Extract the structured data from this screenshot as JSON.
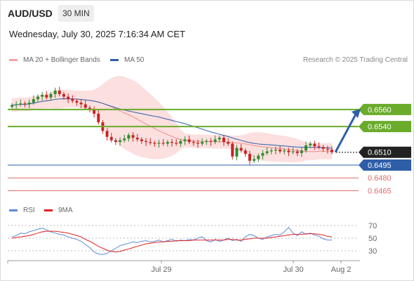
{
  "header": {
    "symbol": "AUD/USD",
    "timeframe": "30 MIN",
    "datetime": "Wednesday, July 30, 2025 7:16:34 AM CET",
    "credit": "Research © 2025 Trading Central"
  },
  "legend": {
    "ma20": {
      "label": "MA 20 + Bollinger Bands",
      "color": "#f4a3a3"
    },
    "ma50": {
      "label": "MA 50",
      "color": "#2e5ea8"
    }
  },
  "rsi_legend": {
    "rsi": {
      "label": "RSI",
      "color": "#5b8bd9"
    },
    "ma9": {
      "label": "9MA",
      "color": "#e02020"
    }
  },
  "colors": {
    "up": "#2e8b2e",
    "down": "#cc2222",
    "level_green": "#6aab2a",
    "support_blue": "#2e5ea8",
    "level_red": "#e06b6b",
    "current": "#222222",
    "band": "#fbd9d9",
    "arrow": "#2e5ea8"
  },
  "chart_data": [
    {
      "type": "candlestick",
      "title": "AUD/USD 30 MIN",
      "ylim": [
        0.6458,
        0.6596
      ],
      "x_ticks": [
        "Jul 29",
        "Jul 30",
        "Aug 2"
      ],
      "levels": [
        {
          "value": 0.656,
          "label": "0.6560",
          "kind": "resistance"
        },
        {
          "value": 0.654,
          "label": "0.6540",
          "kind": "resistance"
        },
        {
          "value": 0.651,
          "label": "0.6510",
          "kind": "current"
        },
        {
          "value": 0.6495,
          "label": "0.6495",
          "kind": "support"
        },
        {
          "value": 0.648,
          "label": "0.6480",
          "kind": "support_weak"
        },
        {
          "value": 0.6465,
          "label": "0.6465",
          "kind": "support_weak"
        }
      ],
      "close_series": [
        0.6565,
        0.6566,
        0.6567,
        0.6566,
        0.6568,
        0.6572,
        0.6575,
        0.6577,
        0.6574,
        0.6578,
        0.6582,
        0.6578,
        0.6575,
        0.6572,
        0.657,
        0.6568,
        0.6566,
        0.6562,
        0.656,
        0.6555,
        0.6545,
        0.6535,
        0.6528,
        0.6524,
        0.6522,
        0.6524,
        0.6526,
        0.653,
        0.6527,
        0.6525,
        0.6523,
        0.6522,
        0.6521,
        0.652,
        0.6521,
        0.652,
        0.6522,
        0.6521,
        0.652,
        0.6523,
        0.6525,
        0.6522,
        0.6521,
        0.652,
        0.6522,
        0.6523,
        0.6522,
        0.6525,
        0.6527,
        0.6522,
        0.652,
        0.6505,
        0.6515,
        0.6512,
        0.6508,
        0.65,
        0.6502,
        0.6506,
        0.6509,
        0.6511,
        0.6512,
        0.6513,
        0.6511,
        0.6512,
        0.651,
        0.6511,
        0.6509,
        0.6512,
        0.6518,
        0.652,
        0.6517,
        0.6516,
        0.6514,
        0.6513,
        0.651
      ],
      "forecast_target": 0.656
    },
    {
      "type": "line",
      "title": "RSI",
      "ylim": [
        20,
        80
      ],
      "y_ticks": [
        70,
        50,
        30
      ],
      "series": [
        {
          "name": "RSI",
          "values": [
            52,
            54,
            58,
            57,
            60,
            62,
            64,
            66,
            63,
            60,
            58,
            56,
            55,
            52,
            50,
            48,
            45,
            40,
            35,
            28,
            25,
            24,
            26,
            30,
            34,
            38,
            40,
            42,
            44,
            43,
            45,
            46,
            44,
            45,
            47,
            44,
            46,
            48,
            45,
            47,
            46,
            48,
            47,
            50,
            52,
            46,
            44,
            48,
            45,
            47,
            50,
            46,
            48,
            45,
            52,
            56,
            54,
            50,
            48,
            52,
            54,
            56,
            55,
            60,
            67,
            58,
            54,
            60,
            56,
            58,
            55,
            53,
            49,
            47,
            47
          ]
        },
        {
          "name": "9MA",
          "values": [
            50,
            51,
            52,
            53,
            54,
            56,
            58,
            60,
            61,
            61,
            61,
            60,
            59,
            58,
            56,
            54,
            52,
            48,
            45,
            41,
            37,
            34,
            31,
            29,
            28,
            29,
            31,
            33,
            35,
            37,
            39,
            41,
            42,
            43,
            44,
            44,
            45,
            45,
            46,
            46,
            46,
            46,
            47,
            47,
            47,
            47,
            47,
            47,
            47,
            47,
            48,
            48,
            47,
            47,
            48,
            49,
            50,
            50,
            50,
            50,
            51,
            52,
            53,
            54,
            55,
            56,
            56,
            56,
            57,
            57,
            57,
            56,
            55,
            53,
            52
          ]
        }
      ]
    }
  ]
}
